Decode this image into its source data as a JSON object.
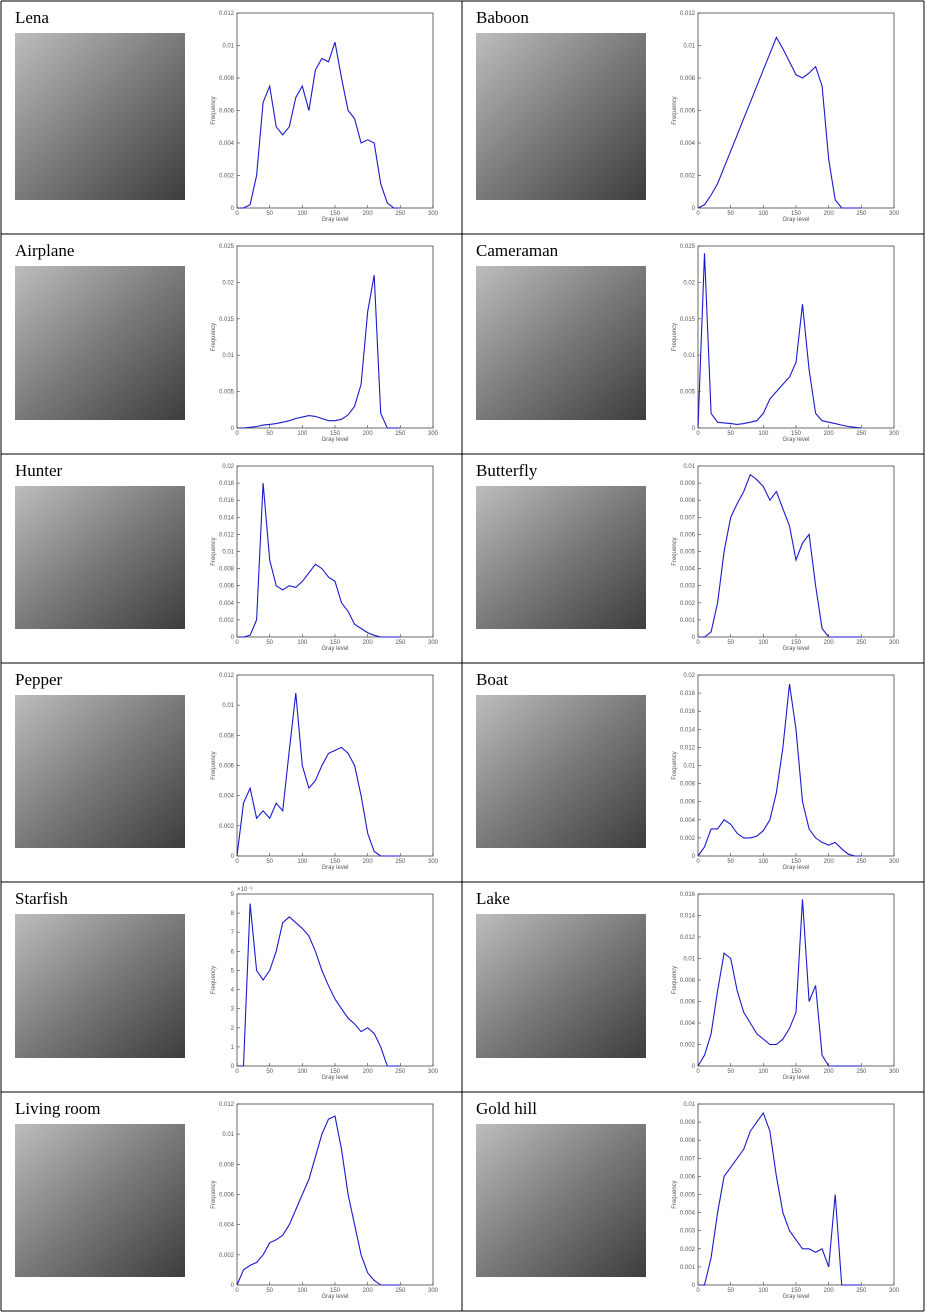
{
  "cells": [
    {
      "label": "Lena",
      "histogram": {
        "type": "line",
        "x_label": "Gray level",
        "y_label": "Frequency",
        "color": "#1a1acc",
        "x": [
          0,
          10,
          20,
          30,
          40,
          50,
          60,
          70,
          80,
          90,
          100,
          110,
          120,
          130,
          140,
          150,
          160,
          170,
          180,
          190,
          200,
          210,
          220,
          230,
          240,
          250
        ],
        "values": [
          0,
          0,
          0.0002,
          0.002,
          0.0065,
          0.0075,
          0.005,
          0.0045,
          0.005,
          0.0068,
          0.0075,
          0.006,
          0.0085,
          0.0092,
          0.009,
          0.0102,
          0.008,
          0.006,
          0.0055,
          0.004,
          0.0042,
          0.004,
          0.0015,
          0.0003,
          0,
          0
        ],
        "xlim": [
          0,
          300
        ],
        "xticks": [
          0,
          50,
          100,
          150,
          200,
          250,
          300
        ],
        "ylim": [
          0,
          0.012
        ],
        "yticks": [
          0,
          0.002,
          0.004,
          0.006,
          0.008,
          0.01,
          0.012
        ]
      }
    },
    {
      "label": "Baboon",
      "histogram": {
        "type": "line",
        "x_label": "Gray level",
        "y_label": "Frequency",
        "color": "#1a1acc",
        "x": [
          0,
          10,
          20,
          30,
          40,
          50,
          60,
          70,
          80,
          90,
          100,
          110,
          120,
          130,
          140,
          150,
          160,
          170,
          180,
          190,
          200,
          210,
          220,
          230,
          240,
          250
        ],
        "values": [
          0,
          0.0002,
          0.0008,
          0.0015,
          0.0025,
          0.0035,
          0.0045,
          0.0055,
          0.0065,
          0.0075,
          0.0085,
          0.0095,
          0.0105,
          0.0098,
          0.009,
          0.0082,
          0.008,
          0.0083,
          0.0087,
          0.0075,
          0.003,
          0.0005,
          0,
          0,
          0,
          0
        ],
        "xlim": [
          0,
          300
        ],
        "xticks": [
          0,
          50,
          100,
          150,
          200,
          250,
          300
        ],
        "ylim": [
          0,
          0.012
        ],
        "yticks": [
          0,
          0.002,
          0.004,
          0.006,
          0.008,
          0.01,
          0.012
        ]
      }
    },
    {
      "label": "Airplane",
      "histogram": {
        "type": "line",
        "x_label": "Gray level",
        "y_label": "Frequency",
        "color": "#1a1acc",
        "x": [
          0,
          10,
          20,
          30,
          40,
          50,
          60,
          70,
          80,
          90,
          100,
          110,
          120,
          130,
          140,
          150,
          160,
          170,
          180,
          190,
          200,
          210,
          220,
          230,
          240,
          250
        ],
        "values": [
          0,
          0,
          0.0001,
          0.0002,
          0.0004,
          0.0005,
          0.0006,
          0.0008,
          0.001,
          0.0013,
          0.0015,
          0.0017,
          0.0016,
          0.0013,
          0.001,
          0.001,
          0.0012,
          0.0018,
          0.003,
          0.006,
          0.016,
          0.021,
          0.002,
          0,
          0,
          0
        ],
        "xlim": [
          0,
          300
        ],
        "xticks": [
          0,
          50,
          100,
          150,
          200,
          250,
          300
        ],
        "ylim": [
          0,
          0.025
        ],
        "yticks": [
          0,
          0.005,
          0.01,
          0.015,
          0.02,
          0.025
        ]
      }
    },
    {
      "label": "Cameraman",
      "histogram": {
        "type": "line",
        "x_label": "Gray level",
        "y_label": "Frequency",
        "color": "#1a1acc",
        "x": [
          0,
          10,
          20,
          30,
          40,
          50,
          60,
          70,
          80,
          90,
          100,
          110,
          120,
          130,
          140,
          150,
          160,
          170,
          180,
          190,
          200,
          210,
          220,
          230,
          240,
          250
        ],
        "values": [
          0,
          0.024,
          0.002,
          0.0008,
          0.0007,
          0.0006,
          0.0005,
          0.0006,
          0.0008,
          0.001,
          0.002,
          0.004,
          0.005,
          0.006,
          0.007,
          0.009,
          0.017,
          0.008,
          0.002,
          0.001,
          0.0008,
          0.0006,
          0.0004,
          0.0002,
          0.0001,
          0
        ],
        "xlim": [
          0,
          300
        ],
        "xticks": [
          0,
          50,
          100,
          150,
          200,
          250,
          300
        ],
        "ylim": [
          0,
          0.025
        ],
        "yticks": [
          0,
          0.005,
          0.01,
          0.015,
          0.02,
          0.025
        ]
      }
    },
    {
      "label": "Hunter",
      "histogram": {
        "type": "line",
        "x_label": "Gray level",
        "y_label": "Frequency",
        "color": "#1a1acc",
        "x": [
          0,
          10,
          20,
          30,
          40,
          50,
          60,
          70,
          80,
          90,
          100,
          110,
          120,
          130,
          140,
          150,
          160,
          170,
          180,
          190,
          200,
          210,
          220,
          230,
          240,
          250
        ],
        "values": [
          0,
          0,
          0.0002,
          0.002,
          0.018,
          0.009,
          0.006,
          0.0055,
          0.006,
          0.0058,
          0.0065,
          0.0075,
          0.0085,
          0.008,
          0.007,
          0.0065,
          0.004,
          0.003,
          0.0015,
          0.001,
          0.0005,
          0.0002,
          0,
          0,
          0,
          0
        ],
        "xlim": [
          0,
          300
        ],
        "xticks": [
          0,
          50,
          100,
          150,
          200,
          250,
          300
        ],
        "ylim": [
          0,
          0.02
        ],
        "yticks": [
          0,
          0.002,
          0.004,
          0.006,
          0.008,
          0.01,
          0.012,
          0.014,
          0.016,
          0.018,
          0.02
        ]
      }
    },
    {
      "label": "Butterfly",
      "histogram": {
        "type": "line",
        "x_label": "Gray level",
        "y_label": "Frequency",
        "color": "#1a1acc",
        "x": [
          0,
          10,
          20,
          30,
          40,
          50,
          60,
          70,
          80,
          90,
          100,
          110,
          120,
          130,
          140,
          150,
          160,
          170,
          180,
          190,
          200,
          210,
          220,
          230,
          240,
          250
        ],
        "values": [
          0,
          0,
          0.0003,
          0.002,
          0.005,
          0.007,
          0.0078,
          0.0085,
          0.0095,
          0.0092,
          0.0088,
          0.008,
          0.0085,
          0.0075,
          0.0065,
          0.0045,
          0.0055,
          0.006,
          0.003,
          0.0005,
          0,
          0,
          0,
          0,
          0,
          0
        ],
        "xlim": [
          0,
          300
        ],
        "xticks": [
          0,
          50,
          100,
          150,
          200,
          250,
          300
        ],
        "ylim": [
          0,
          0.01
        ],
        "yticks": [
          0,
          0.001,
          0.002,
          0.003,
          0.004,
          0.005,
          0.006,
          0.007,
          0.008,
          0.009,
          0.01
        ]
      }
    },
    {
      "label": "Pepper",
      "histogram": {
        "type": "line",
        "x_label": "Gray level",
        "y_label": "Frequency",
        "color": "#1a1acc",
        "x": [
          0,
          10,
          20,
          30,
          40,
          50,
          60,
          70,
          80,
          90,
          100,
          110,
          120,
          130,
          140,
          150,
          160,
          170,
          180,
          190,
          200,
          210,
          220,
          230,
          240,
          250
        ],
        "values": [
          0,
          0.0035,
          0.0045,
          0.0025,
          0.003,
          0.0025,
          0.0035,
          0.003,
          0.007,
          0.0108,
          0.006,
          0.0045,
          0.005,
          0.006,
          0.0068,
          0.007,
          0.0072,
          0.0068,
          0.006,
          0.004,
          0.0015,
          0.0003,
          0,
          0,
          0,
          0
        ],
        "xlim": [
          0,
          300
        ],
        "xticks": [
          0,
          50,
          100,
          150,
          200,
          250,
          300
        ],
        "ylim": [
          0,
          0.012
        ],
        "yticks": [
          0,
          0.002,
          0.004,
          0.006,
          0.008,
          0.01,
          0.012
        ]
      }
    },
    {
      "label": "Boat",
      "histogram": {
        "type": "line",
        "x_label": "Gray level",
        "y_label": "Frequency",
        "color": "#1a1acc",
        "x": [
          0,
          10,
          20,
          30,
          40,
          50,
          60,
          70,
          80,
          90,
          100,
          110,
          120,
          130,
          140,
          150,
          160,
          170,
          180,
          190,
          200,
          210,
          220,
          230,
          240,
          250
        ],
        "values": [
          0,
          0.001,
          0.003,
          0.003,
          0.004,
          0.0035,
          0.0025,
          0.002,
          0.002,
          0.0022,
          0.0028,
          0.004,
          0.007,
          0.012,
          0.019,
          0.014,
          0.006,
          0.003,
          0.002,
          0.0015,
          0.0012,
          0.0015,
          0.0008,
          0.0002,
          0,
          0
        ],
        "xlim": [
          0,
          300
        ],
        "xticks": [
          0,
          50,
          100,
          150,
          200,
          250,
          300
        ],
        "ylim": [
          0,
          0.02
        ],
        "yticks": [
          0,
          0.002,
          0.004,
          0.006,
          0.008,
          0.01,
          0.012,
          0.014,
          0.016,
          0.018,
          0.02
        ]
      }
    },
    {
      "label": "Starfish",
      "histogram": {
        "type": "line",
        "x_label": "Gray level",
        "y_label": "Frequency",
        "y_scale_label": "×10⁻³",
        "color": "#1a1acc",
        "x": [
          0,
          10,
          20,
          30,
          40,
          50,
          60,
          70,
          80,
          90,
          100,
          110,
          120,
          130,
          140,
          150,
          160,
          170,
          180,
          190,
          200,
          210,
          220,
          230,
          240,
          250
        ],
        "values": [
          0,
          0,
          8.5,
          5,
          4.5,
          5,
          6,
          7.5,
          7.8,
          7.5,
          7.2,
          6.8,
          6,
          5,
          4.2,
          3.5,
          3,
          2.5,
          2.2,
          1.8,
          2,
          1.7,
          1,
          0,
          0,
          0
        ],
        "xlim": [
          0,
          300
        ],
        "xticks": [
          0,
          50,
          100,
          150,
          200,
          250,
          300
        ],
        "ylim": [
          0,
          9
        ],
        "yticks": [
          0,
          1,
          2,
          3,
          4,
          5,
          6,
          7,
          8,
          9
        ]
      }
    },
    {
      "label": "Lake",
      "histogram": {
        "type": "line",
        "x_label": "Gray level",
        "y_label": "Frequency",
        "color": "#1a1acc",
        "x": [
          0,
          10,
          20,
          30,
          40,
          50,
          60,
          70,
          80,
          90,
          100,
          110,
          120,
          130,
          140,
          150,
          160,
          170,
          180,
          190,
          200,
          210,
          220,
          230,
          240,
          250
        ],
        "values": [
          0,
          0.001,
          0.003,
          0.007,
          0.0105,
          0.01,
          0.007,
          0.005,
          0.004,
          0.003,
          0.0025,
          0.002,
          0.002,
          0.0025,
          0.0035,
          0.005,
          0.0155,
          0.006,
          0.0075,
          0.001,
          0,
          0,
          0,
          0,
          0,
          0
        ],
        "xlim": [
          0,
          300
        ],
        "xticks": [
          0,
          50,
          100,
          150,
          200,
          250,
          300
        ],
        "ylim": [
          0,
          0.016
        ],
        "yticks": [
          0,
          0.002,
          0.004,
          0.006,
          0.008,
          0.01,
          0.012,
          0.014,
          0.016
        ]
      }
    },
    {
      "label": "Living room",
      "histogram": {
        "type": "line",
        "x_label": "Gray level",
        "y_label": "Frequency",
        "color": "#1a1acc",
        "x": [
          0,
          10,
          20,
          30,
          40,
          50,
          60,
          70,
          80,
          90,
          100,
          110,
          120,
          130,
          140,
          150,
          160,
          170,
          180,
          190,
          200,
          210,
          220,
          230,
          240,
          250
        ],
        "values": [
          0,
          0.001,
          0.0013,
          0.0015,
          0.002,
          0.0028,
          0.003,
          0.0033,
          0.004,
          0.005,
          0.006,
          0.007,
          0.0085,
          0.01,
          0.011,
          0.0112,
          0.009,
          0.006,
          0.004,
          0.002,
          0.0008,
          0.0003,
          0,
          0,
          0,
          0
        ],
        "xlim": [
          0,
          300
        ],
        "xticks": [
          0,
          50,
          100,
          150,
          200,
          250,
          300
        ],
        "ylim": [
          0,
          0.012
        ],
        "yticks": [
          0,
          0.002,
          0.004,
          0.006,
          0.008,
          0.01,
          0.012
        ]
      }
    },
    {
      "label": "Gold hill",
      "histogram": {
        "type": "line",
        "x_label": "Gray level",
        "y_label": "Frequency",
        "color": "#1a1acc",
        "x": [
          0,
          10,
          20,
          30,
          40,
          50,
          60,
          70,
          80,
          90,
          100,
          110,
          120,
          130,
          140,
          150,
          160,
          170,
          180,
          190,
          200,
          210,
          220,
          230,
          240,
          250
        ],
        "values": [
          0,
          0,
          0.0015,
          0.004,
          0.006,
          0.0065,
          0.007,
          0.0075,
          0.0085,
          0.009,
          0.0095,
          0.0085,
          0.006,
          0.004,
          0.003,
          0.0025,
          0.002,
          0.002,
          0.0018,
          0.002,
          0.001,
          0.005,
          0,
          0,
          0,
          0
        ],
        "xlim": [
          0,
          300
        ],
        "xticks": [
          0,
          50,
          100,
          150,
          200,
          250,
          300
        ],
        "ylim": [
          0,
          0.01
        ],
        "yticks": [
          0,
          0.001,
          0.002,
          0.003,
          0.004,
          0.005,
          0.006,
          0.007,
          0.008,
          0.009,
          0.01
        ]
      }
    }
  ]
}
